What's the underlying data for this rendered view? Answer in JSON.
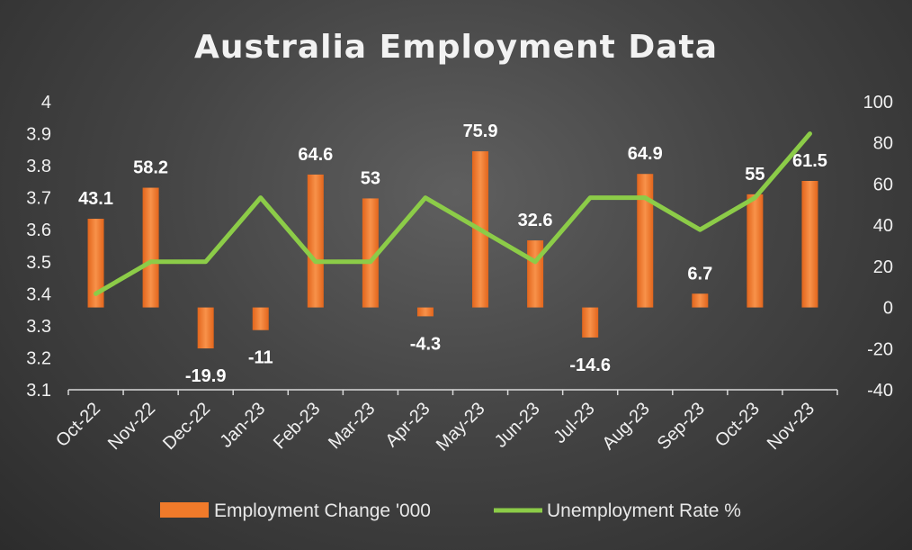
{
  "chart_data": {
    "type": "bar+line",
    "title": "Australia Employment Data",
    "categories": [
      "Oct-22",
      "Nov-22",
      "Dec-22",
      "Jan-23",
      "Feb-23",
      "Mar-23",
      "Apr-23",
      "May-23",
      "Jun-23",
      "Jul-23",
      "Aug-23",
      "Sep-23",
      "Oct-23",
      "Nov-23"
    ],
    "series": [
      {
        "name": "Employment Change '000",
        "type": "bar",
        "axis": "right",
        "values": [
          43.1,
          58.2,
          -19.9,
          -11,
          64.6,
          53,
          -4.3,
          75.9,
          32.6,
          -14.6,
          64.9,
          6.7,
          55,
          61.5
        ],
        "color": "#f07a2a"
      },
      {
        "name": "Unemployment Rate %",
        "type": "line",
        "axis": "left",
        "values": [
          3.4,
          3.5,
          3.5,
          3.7,
          3.5,
          3.5,
          3.7,
          3.6,
          3.5,
          3.7,
          3.7,
          3.6,
          3.7,
          3.9
        ],
        "color": "#8ccc48"
      }
    ],
    "y_left": {
      "min": 3.1,
      "max": 4,
      "step": 0.1,
      "ticks": [
        "3.1",
        "3.2",
        "3.3",
        "3.4",
        "3.5",
        "3.6",
        "3.7",
        "3.8",
        "3.9",
        "4"
      ]
    },
    "y_right": {
      "min": -40,
      "max": 100,
      "step": 20,
      "ticks": [
        "-40",
        "-20",
        "0",
        "20",
        "40",
        "60",
        "80",
        "100"
      ]
    },
    "grid": false,
    "legend_position": "bottom"
  }
}
